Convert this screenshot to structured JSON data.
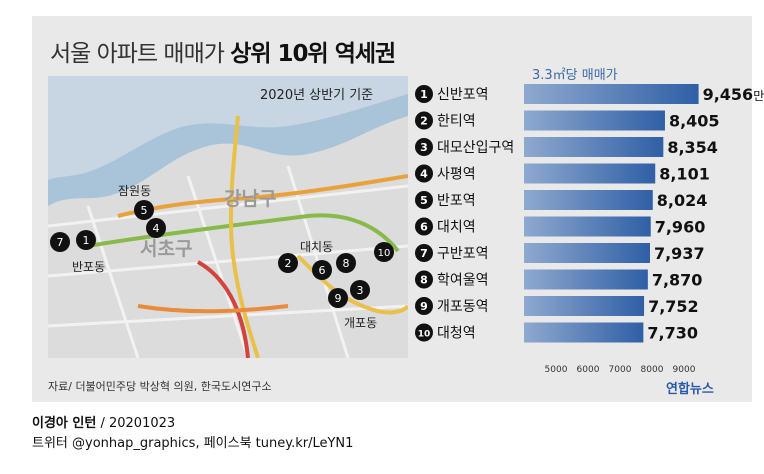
{
  "title_light": "서울 아파트 매매가",
  "title_bold": "상위 10위 역세권",
  "map": {
    "note": "2020년 상반기 기준",
    "districts": [
      "강남구",
      "서초구"
    ],
    "places": [
      "잠원동",
      "반포동",
      "대치동",
      "개포동"
    ]
  },
  "legend_label": "3.3㎡당 매매가",
  "value_unit": "만원",
  "source": "자료/ 더불어민주당 박상혁 의원, 한국도시연구소",
  "logo": "연합뉴스",
  "credit": {
    "name": "이경아 인턴",
    "date": "/  20201023"
  },
  "social": "트위터 @yonhap_graphics, 페이스북 tuney.kr/LeYN1",
  "colors": {
    "bar_start": "#8fa9cf",
    "bar_end": "#2f5fa6",
    "accent": "#3b6aa8"
  },
  "chart_data": {
    "type": "bar",
    "orientation": "horizontal",
    "categories": [
      "신반포역",
      "한티역",
      "대모산입구역",
      "사평역",
      "반포역",
      "대치역",
      "구반포역",
      "학여울역",
      "개포동역",
      "대청역"
    ],
    "ranks": [
      "1",
      "2",
      "3",
      "4",
      "5",
      "6",
      "7",
      "8",
      "9",
      "10"
    ],
    "values": [
      9456,
      8405,
      8354,
      8101,
      8024,
      7960,
      7937,
      7870,
      7752,
      7730
    ],
    "value_labels": [
      "9,456",
      "8,405",
      "8,354",
      "8,101",
      "8,024",
      "7,960",
      "7,937",
      "7,870",
      "7,752",
      "7,730"
    ],
    "xlim": [
      4000,
      9000
    ],
    "xticks": [
      "5000",
      "6000",
      "7000",
      "8000",
      "9000"
    ],
    "ylabel": "3.3㎡당 매매가",
    "grid": false
  }
}
